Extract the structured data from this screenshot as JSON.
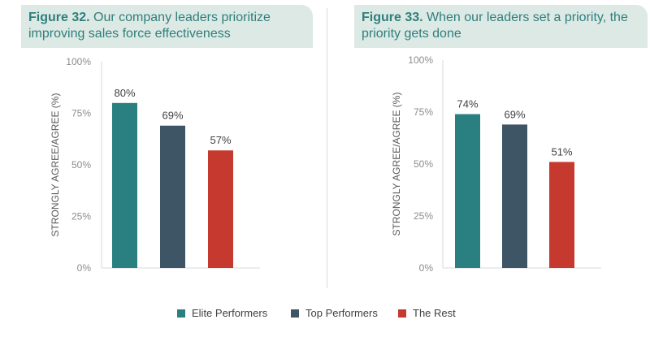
{
  "colors": {
    "elite": "#2a7f80",
    "top": "#3d5565",
    "rest": "#c5392f",
    "title_bg": "#dde9e5",
    "title_text": "#2e7f7c"
  },
  "legend": [
    {
      "name": "Elite Performers",
      "color": "#2a7f80"
    },
    {
      "name": "Top Performers",
      "color": "#3d5565"
    },
    {
      "name": "The Rest",
      "color": "#c5392f"
    }
  ],
  "chart_data": [
    {
      "type": "bar",
      "title_bold": "Figure 32.",
      "title": "Our company leaders prioritize improving sales force effectiveness",
      "ylabel": "STRONGLY AGREE/AGREE (%)",
      "ylim": [
        0,
        100
      ],
      "yticks": [
        "0%",
        "25%",
        "50%",
        "75%",
        "100%"
      ],
      "categories": [
        "Elite Performers",
        "Top Performers",
        "The Rest"
      ],
      "values": [
        80,
        69,
        57
      ],
      "value_labels": [
        "80%",
        "69%",
        "57%"
      ],
      "grid": false
    },
    {
      "type": "bar",
      "title_bold": "Figure 33.",
      "title": "When our leaders set a priority, the priority gets done",
      "ylabel": "STRONGLY AGREE/AGREE (%)",
      "ylim": [
        0,
        100
      ],
      "yticks": [
        "0%",
        "25%",
        "50%",
        "75%",
        "100%"
      ],
      "categories": [
        "Elite Performers",
        "Top Performers",
        "The Rest"
      ],
      "values": [
        74,
        69,
        51
      ],
      "value_labels": [
        "74%",
        "69%",
        "51%"
      ],
      "grid": false
    }
  ]
}
